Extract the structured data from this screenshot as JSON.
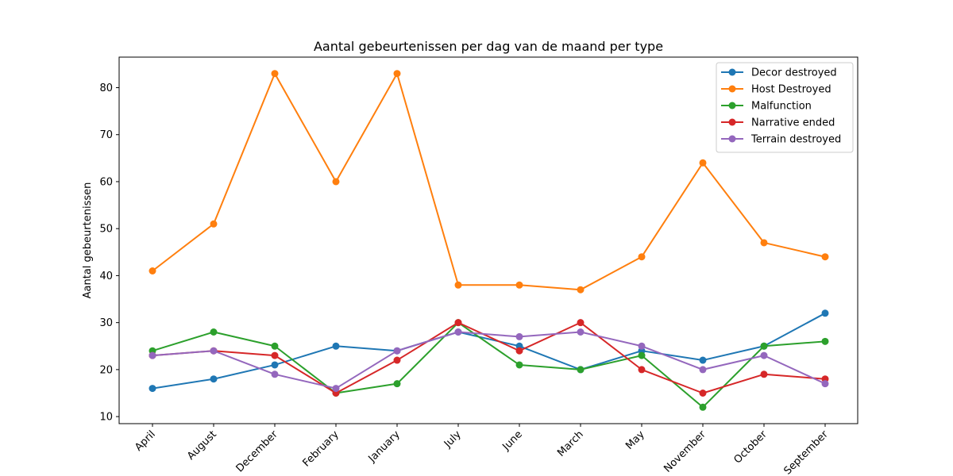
{
  "chart_data": {
    "type": "line",
    "title": "Aantal gebeurtenissen per dag van de maand per type",
    "xlabel": "",
    "ylabel": "Aantal gebeurtenissen",
    "categories": [
      "April",
      "August",
      "December",
      "February",
      "January",
      "July",
      "June",
      "March",
      "May",
      "November",
      "October",
      "September"
    ],
    "ylim": [
      8.5,
      86.5
    ],
    "yticks": [
      10,
      20,
      30,
      40,
      50,
      60,
      70,
      80
    ],
    "grid": false,
    "legend": "top-right",
    "series": [
      {
        "name": "Decor destroyed",
        "color": "#1f77b4",
        "values": [
          16,
          18,
          21,
          25,
          24,
          28,
          25,
          20,
          24,
          22,
          25,
          32
        ]
      },
      {
        "name": "Host Destroyed",
        "color": "#ff7f0e",
        "values": [
          41,
          51,
          83,
          60,
          83,
          38,
          38,
          37,
          44,
          64,
          47,
          44
        ]
      },
      {
        "name": "Malfunction",
        "color": "#2ca02c",
        "values": [
          24,
          28,
          25,
          15,
          17,
          30,
          21,
          20,
          23,
          12,
          25,
          26
        ]
      },
      {
        "name": "Narrative ended",
        "color": "#d62728",
        "values": [
          23,
          24,
          23,
          15,
          22,
          30,
          24,
          30,
          20,
          15,
          19,
          18
        ]
      },
      {
        "name": "Terrain destroyed",
        "color": "#9467bd",
        "values": [
          23,
          24,
          19,
          16,
          24,
          28,
          27,
          28,
          25,
          20,
          23,
          17
        ]
      }
    ]
  }
}
